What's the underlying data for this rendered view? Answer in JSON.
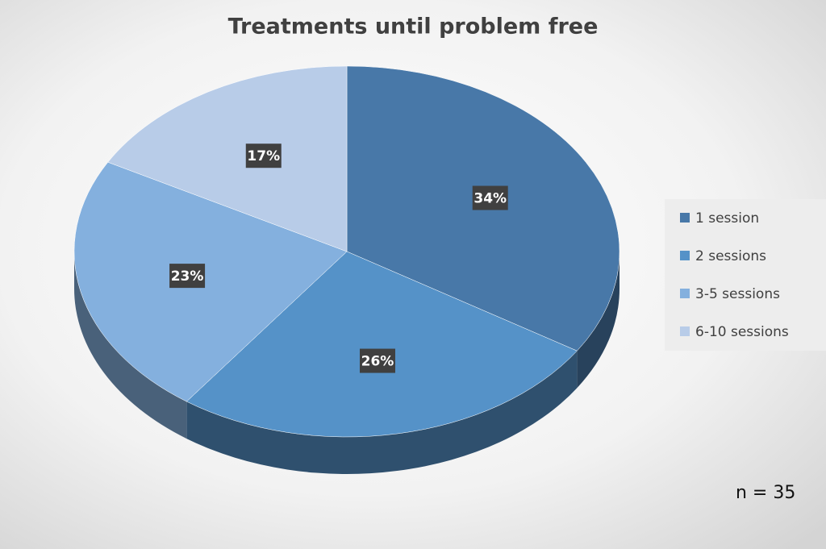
{
  "chart_data": {
    "type": "pie",
    "title": "Treatments until problem free",
    "categories": [
      "1 session",
      "2 sessions",
      "3-5 sessions",
      "6-10 sessions"
    ],
    "values": [
      34,
      26,
      23,
      17
    ],
    "value_labels": [
      "34%",
      "26%",
      "23%",
      "17%"
    ],
    "colors": [
      "#4878a8",
      "#5592c8",
      "#84b0de",
      "#b8cce8"
    ],
    "legend": "right",
    "annotation": "n = 35"
  }
}
